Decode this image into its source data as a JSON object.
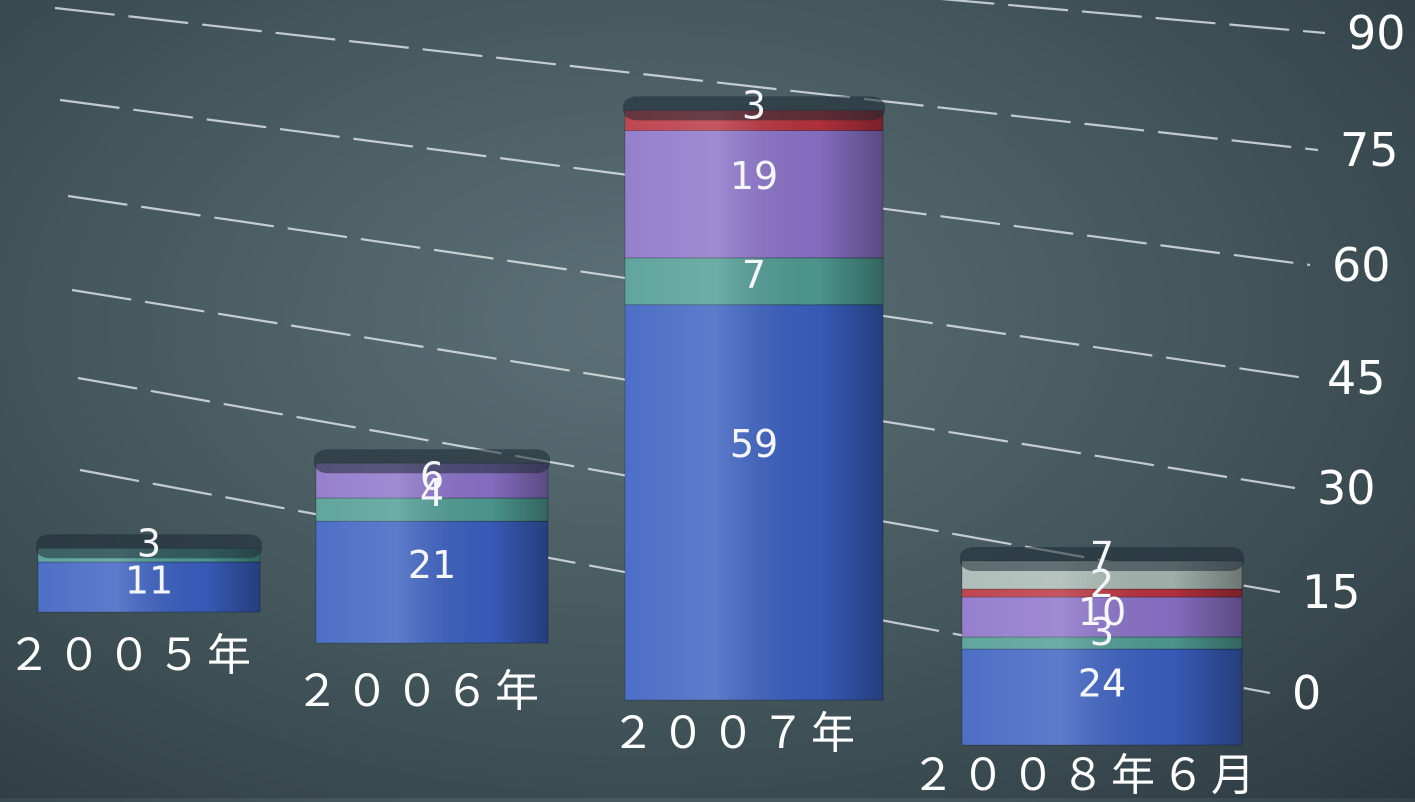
{
  "chart_data": {
    "type": "bar",
    "stacked": true,
    "title": "",
    "xlabel": "",
    "ylabel": "",
    "ylim": [
      0,
      90
    ],
    "y_ticks": [
      0,
      15,
      30,
      45,
      60,
      75,
      90
    ],
    "y_tick_labels": [
      "0",
      "15",
      "30",
      "45",
      "60",
      "75",
      "90"
    ],
    "axis_position": "right",
    "grid": true,
    "legend": "none",
    "categories": [
      "２００５年",
      "２００６年",
      "２００７年",
      "２００８年６月"
    ],
    "series": [
      {
        "color": "#3a5fc0",
        "values": [
          11,
          21,
          59,
          24
        ]
      },
      {
        "color": "#4f9b93",
        "values": [
          3,
          4,
          7,
          3
        ]
      },
      {
        "color": "#8a72c8",
        "values": [
          0,
          6,
          19,
          10
        ]
      },
      {
        "color": "#b8323e",
        "values": [
          0,
          0,
          3,
          2
        ]
      },
      {
        "color": "#a7b7b2",
        "values": [
          0,
          0,
          0,
          7
        ]
      }
    ]
  }
}
